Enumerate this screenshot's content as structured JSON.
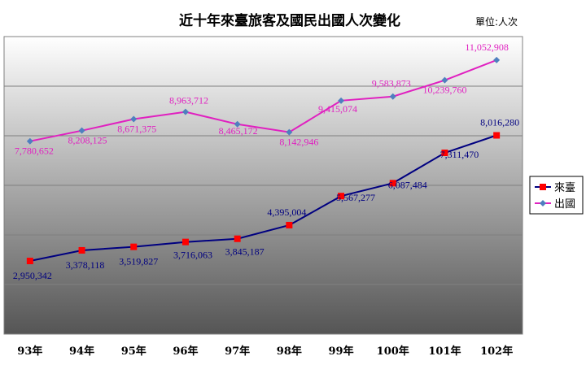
{
  "chart_data": {
    "type": "line",
    "title": "近十年來臺旅客及國民出國人次變化",
    "unit": "單位:人次",
    "categories": [
      "93年",
      "94年",
      "95年",
      "96年",
      "97年",
      "98年",
      "99年",
      "100年",
      "101年",
      "102年"
    ],
    "series": [
      {
        "name": "來臺",
        "color": "#000080",
        "marker_color": "#ff0000",
        "marker": "square",
        "values": [
          2950342,
          3378118,
          3519827,
          3716063,
          3845187,
          4395004,
          5567277,
          6087484,
          7311470,
          8016280
        ],
        "labels": [
          "2,950,342",
          "3,378,118",
          "3,519,827",
          "3,716,063",
          "3,845,187",
          "4,395,004",
          "5,567,277",
          "6,087,484",
          "7,311,470",
          "8,016,280"
        ]
      },
      {
        "name": "出國",
        "color": "#e020c0",
        "marker_color": "#4f7fbf",
        "marker": "diamond",
        "values": [
          7780652,
          8208125,
          8671375,
          8963712,
          8465172,
          8142946,
          9415074,
          9583873,
          10239760,
          11052908
        ],
        "labels": [
          "7,780,652",
          "8,208,125",
          "8,671,375",
          "8,963,712",
          "8,465,172",
          "8,142,946",
          "9,415,074",
          "9,583,873",
          "10,239,760",
          "11,052,908"
        ]
      }
    ],
    "ylim": [
      0,
      12000000
    ],
    "grid": true,
    "legend_position": "right"
  }
}
